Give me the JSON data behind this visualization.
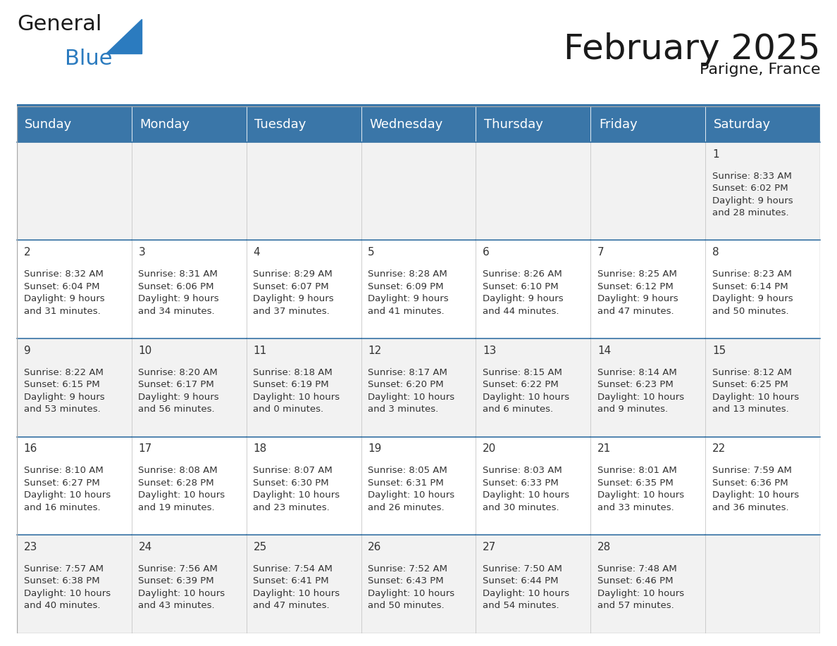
{
  "title": "February 2025",
  "subtitle": "Parigne, France",
  "header_color": "#3a76a8",
  "header_text_color": "#ffffff",
  "cell_bg_odd": "#f2f2f2",
  "cell_bg_even": "#ffffff",
  "day_names": [
    "Sunday",
    "Monday",
    "Tuesday",
    "Wednesday",
    "Thursday",
    "Friday",
    "Saturday"
  ],
  "title_fontsize": 36,
  "subtitle_fontsize": 16,
  "dayname_fontsize": 13,
  "cell_fontsize": 9.5,
  "date_fontsize": 11,
  "logo_color1": "#1a1a1a",
  "logo_color2": "#2b7bbf",
  "calendar_data": [
    [
      {
        "day": "",
        "sunrise": "",
        "sunset": "",
        "daylight": ""
      },
      {
        "day": "",
        "sunrise": "",
        "sunset": "",
        "daylight": ""
      },
      {
        "day": "",
        "sunrise": "",
        "sunset": "",
        "daylight": ""
      },
      {
        "day": "",
        "sunrise": "",
        "sunset": "",
        "daylight": ""
      },
      {
        "day": "",
        "sunrise": "",
        "sunset": "",
        "daylight": ""
      },
      {
        "day": "",
        "sunrise": "",
        "sunset": "",
        "daylight": ""
      },
      {
        "day": "1",
        "sunrise": "8:33 AM",
        "sunset": "6:02 PM",
        "daylight": "9 hours and 28 minutes."
      }
    ],
    [
      {
        "day": "2",
        "sunrise": "8:32 AM",
        "sunset": "6:04 PM",
        "daylight": "9 hours and 31 minutes."
      },
      {
        "day": "3",
        "sunrise": "8:31 AM",
        "sunset": "6:06 PM",
        "daylight": "9 hours and 34 minutes."
      },
      {
        "day": "4",
        "sunrise": "8:29 AM",
        "sunset": "6:07 PM",
        "daylight": "9 hours and 37 minutes."
      },
      {
        "day": "5",
        "sunrise": "8:28 AM",
        "sunset": "6:09 PM",
        "daylight": "9 hours and 41 minutes."
      },
      {
        "day": "6",
        "sunrise": "8:26 AM",
        "sunset": "6:10 PM",
        "daylight": "9 hours and 44 minutes."
      },
      {
        "day": "7",
        "sunrise": "8:25 AM",
        "sunset": "6:12 PM",
        "daylight": "9 hours and 47 minutes."
      },
      {
        "day": "8",
        "sunrise": "8:23 AM",
        "sunset": "6:14 PM",
        "daylight": "9 hours and 50 minutes."
      }
    ],
    [
      {
        "day": "9",
        "sunrise": "8:22 AM",
        "sunset": "6:15 PM",
        "daylight": "9 hours and 53 minutes."
      },
      {
        "day": "10",
        "sunrise": "8:20 AM",
        "sunset": "6:17 PM",
        "daylight": "9 hours and 56 minutes."
      },
      {
        "day": "11",
        "sunrise": "8:18 AM",
        "sunset": "6:19 PM",
        "daylight": "10 hours and 0 minutes."
      },
      {
        "day": "12",
        "sunrise": "8:17 AM",
        "sunset": "6:20 PM",
        "daylight": "10 hours and 3 minutes."
      },
      {
        "day": "13",
        "sunrise": "8:15 AM",
        "sunset": "6:22 PM",
        "daylight": "10 hours and 6 minutes."
      },
      {
        "day": "14",
        "sunrise": "8:14 AM",
        "sunset": "6:23 PM",
        "daylight": "10 hours and 9 minutes."
      },
      {
        "day": "15",
        "sunrise": "8:12 AM",
        "sunset": "6:25 PM",
        "daylight": "10 hours and 13 minutes."
      }
    ],
    [
      {
        "day": "16",
        "sunrise": "8:10 AM",
        "sunset": "6:27 PM",
        "daylight": "10 hours and 16 minutes."
      },
      {
        "day": "17",
        "sunrise": "8:08 AM",
        "sunset": "6:28 PM",
        "daylight": "10 hours and 19 minutes."
      },
      {
        "day": "18",
        "sunrise": "8:07 AM",
        "sunset": "6:30 PM",
        "daylight": "10 hours and 23 minutes."
      },
      {
        "day": "19",
        "sunrise": "8:05 AM",
        "sunset": "6:31 PM",
        "daylight": "10 hours and 26 minutes."
      },
      {
        "day": "20",
        "sunrise": "8:03 AM",
        "sunset": "6:33 PM",
        "daylight": "10 hours and 30 minutes."
      },
      {
        "day": "21",
        "sunrise": "8:01 AM",
        "sunset": "6:35 PM",
        "daylight": "10 hours and 33 minutes."
      },
      {
        "day": "22",
        "sunrise": "7:59 AM",
        "sunset": "6:36 PM",
        "daylight": "10 hours and 36 minutes."
      }
    ],
    [
      {
        "day": "23",
        "sunrise": "7:57 AM",
        "sunset": "6:38 PM",
        "daylight": "10 hours and 40 minutes."
      },
      {
        "day": "24",
        "sunrise": "7:56 AM",
        "sunset": "6:39 PM",
        "daylight": "10 hours and 43 minutes."
      },
      {
        "day": "25",
        "sunrise": "7:54 AM",
        "sunset": "6:41 PM",
        "daylight": "10 hours and 47 minutes."
      },
      {
        "day": "26",
        "sunrise": "7:52 AM",
        "sunset": "6:43 PM",
        "daylight": "10 hours and 50 minutes."
      },
      {
        "day": "27",
        "sunrise": "7:50 AM",
        "sunset": "6:44 PM",
        "daylight": "10 hours and 54 minutes."
      },
      {
        "day": "28",
        "sunrise": "7:48 AM",
        "sunset": "6:46 PM",
        "daylight": "10 hours and 57 minutes."
      },
      {
        "day": "",
        "sunrise": "",
        "sunset": "",
        "daylight": ""
      }
    ]
  ]
}
